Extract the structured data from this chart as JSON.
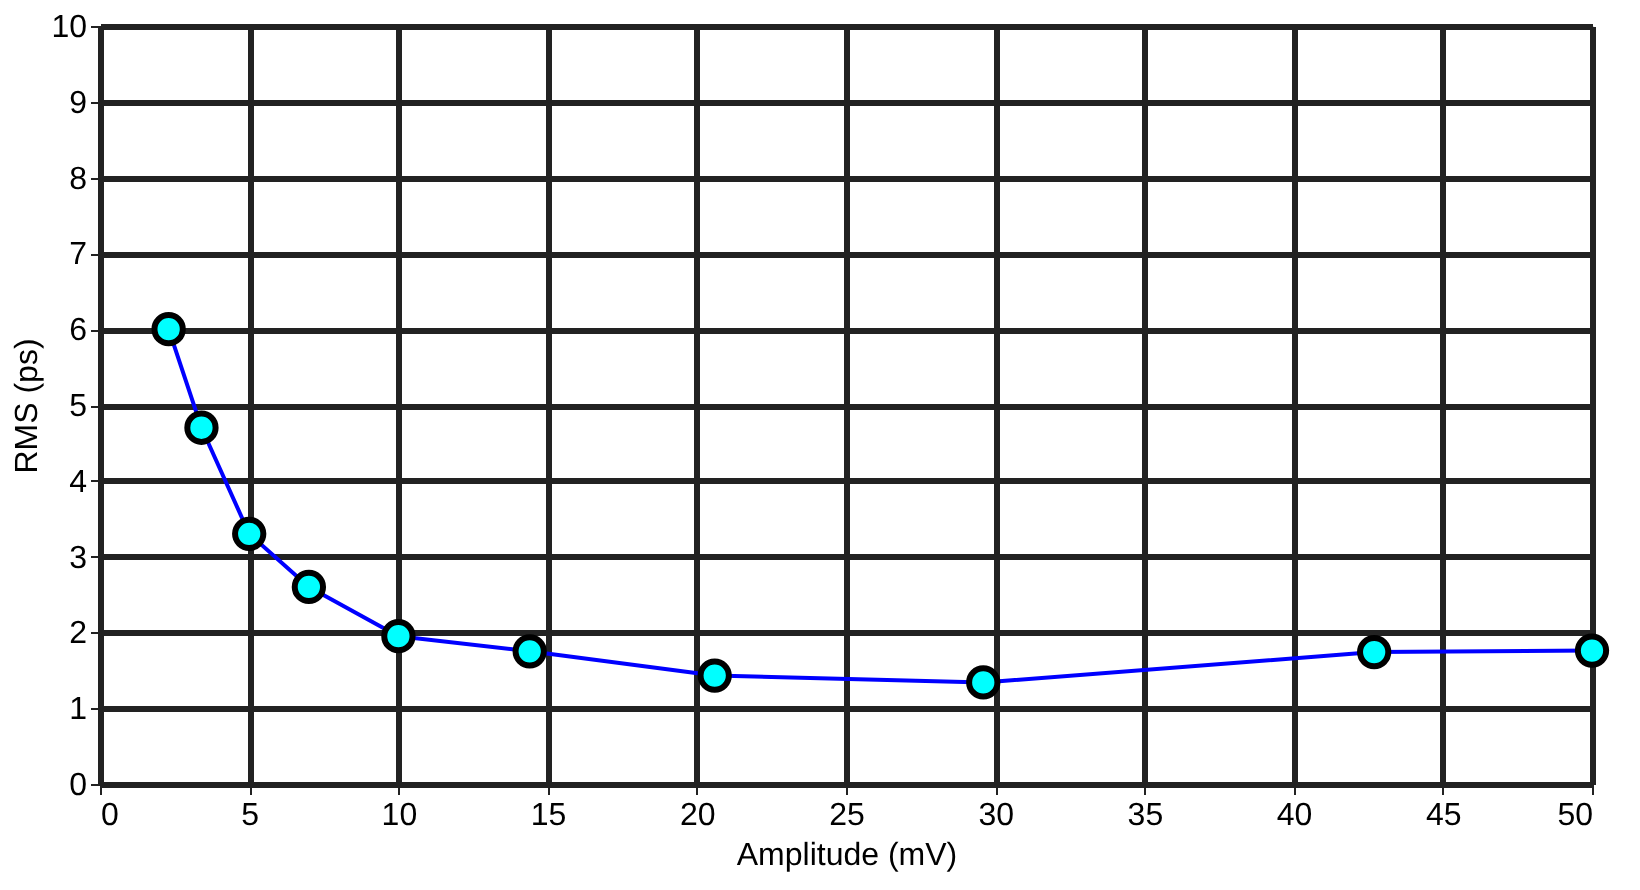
{
  "chart_data": {
    "type": "line",
    "xlabel": "Amplitude (mV)",
    "ylabel": "RMS (ps)",
    "x": [
      2.3,
      3.4,
      5.0,
      7.0,
      10.0,
      14.4,
      20.6,
      29.6,
      42.7,
      50.0
    ],
    "series": [
      {
        "color": "#0000ff",
        "values": [
          6.0,
          4.7,
          3.3,
          2.6,
          1.95,
          1.75,
          1.43,
          1.34,
          1.74,
          1.76
        ]
      }
    ],
    "xlim": [
      0,
      50
    ],
    "ylim": [
      0,
      10
    ],
    "xticks": [
      0,
      5,
      10,
      15,
      20,
      25,
      30,
      35,
      40,
      45,
      50
    ],
    "yticks": [
      0,
      1,
      2,
      3,
      4,
      5,
      6,
      7,
      8,
      9,
      10
    ],
    "grid": true,
    "marker": "circle",
    "line_style": "solid"
  }
}
